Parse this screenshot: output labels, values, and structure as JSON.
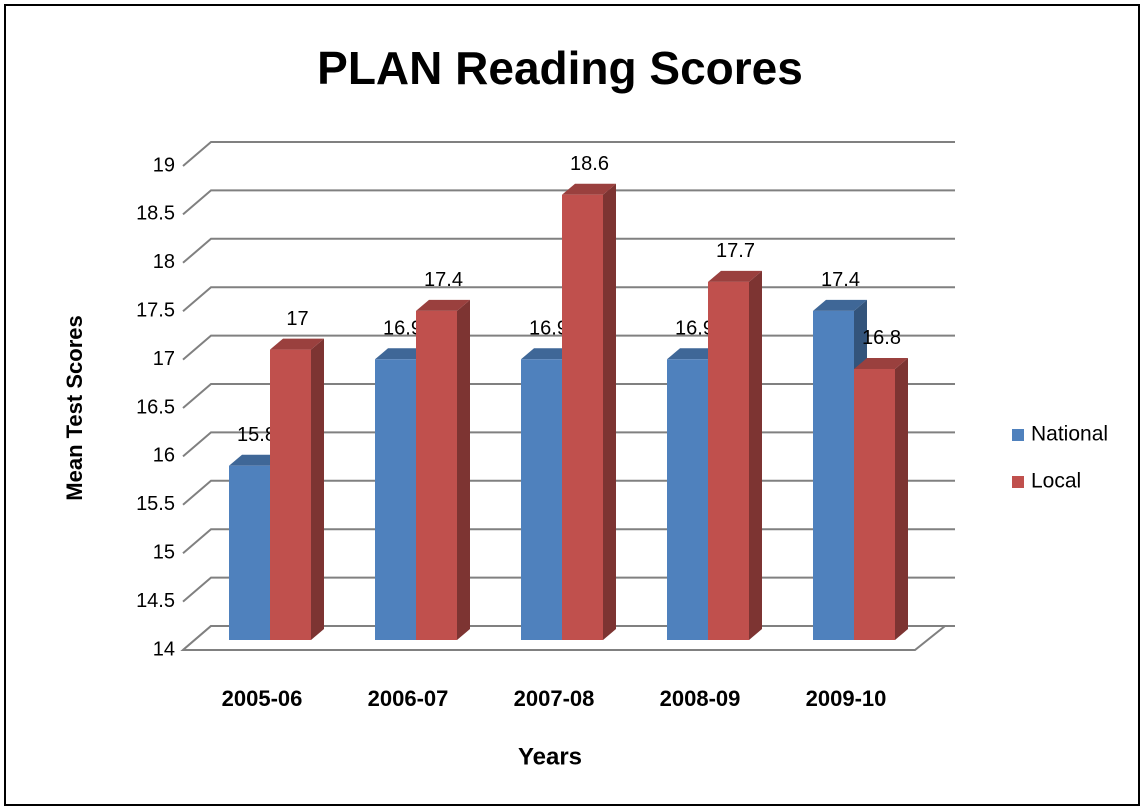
{
  "chart_data": {
    "type": "bar3d",
    "title": "PLAN Reading Scores",
    "x_label": "Years",
    "y_label": "Mean Test Scores",
    "categories": [
      "2005-06",
      "2006-07",
      "2007-08",
      "2008-09",
      "2009-10"
    ],
    "series": [
      {
        "name": "National",
        "color": "#4f81bd",
        "values": [
          15.8,
          16.9,
          16.9,
          16.9,
          17.4
        ]
      },
      {
        "name": "Local",
        "color": "#c0504d",
        "values": [
          17,
          17.4,
          18.6,
          17.7,
          16.8
        ]
      }
    ],
    "ylim": [
      14,
      19
    ],
    "yticks": [
      14,
      14.5,
      15,
      15.5,
      16,
      16.5,
      17,
      17.5,
      18,
      18.5,
      19
    ],
    "grid": true,
    "legend": "right"
  }
}
